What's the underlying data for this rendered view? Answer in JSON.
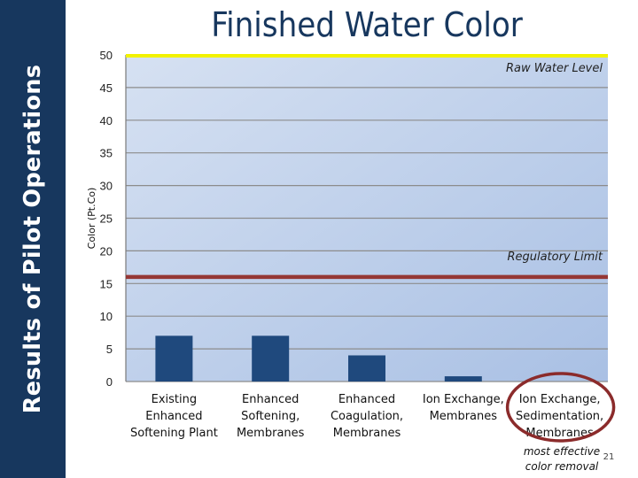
{
  "slide": {
    "side_title": "Results of Pilot Operations",
    "page_number": "21",
    "footnote_line1": "most effective",
    "footnote_line2": "color removal"
  },
  "colors": {
    "sidebar": "#17375e",
    "bar": "#1f497d",
    "raw_water_line": "#f2f200",
    "regulatory_line": "#953735",
    "highlight_ring": "#8b2b2b",
    "plot_bg_top": "#d6e1f2",
    "plot_bg_bottom": "#a9c0e4"
  },
  "chart_data": {
    "type": "bar",
    "title": "Finished Water Color",
    "ylabel": "Color (Pt.Co)",
    "xlabel": "",
    "ylim": [
      0,
      50
    ],
    "yticks": [
      0,
      5,
      10,
      15,
      20,
      25,
      30,
      35,
      40,
      45,
      50
    ],
    "grid": true,
    "categories": [
      [
        "Existing",
        "Enhanced",
        "Softening Plant"
      ],
      [
        "Enhanced",
        "Softening,",
        "Membranes"
      ],
      [
        "Enhanced",
        "Coagulation,",
        "Membranes"
      ],
      [
        "Ion Exchange,",
        "Membranes"
      ],
      [
        "Ion Exchange,",
        "Sedimentation,",
        "Membranes"
      ]
    ],
    "values": [
      7,
      7,
      4,
      0.8,
      0
    ],
    "reference_lines": [
      {
        "label": "Raw Water Level",
        "value": 50
      },
      {
        "label": "Regulatory Limit",
        "value": 16
      }
    ],
    "highlighted_category": 4
  }
}
